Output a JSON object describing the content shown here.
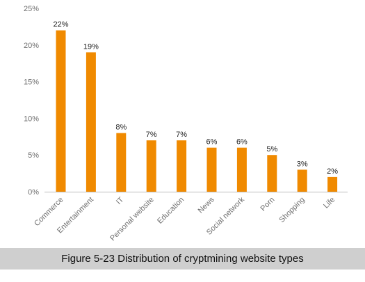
{
  "caption": "Figure 5-23 Distribution of cryptmining website types",
  "colors": {
    "bar": "#f08a00",
    "axis": "#bbbbbb",
    "caption_bg": "#cfcfcf"
  },
  "chart_data": {
    "type": "bar",
    "title": "",
    "xlabel": "",
    "ylabel": "",
    "categories": [
      "Commerce",
      "Entertainment",
      "IT",
      "Personal website",
      "Education",
      "News",
      "Social network",
      "Porn",
      "Shopping",
      "Life"
    ],
    "values": [
      22,
      19,
      8,
      7,
      7,
      6,
      6,
      5,
      3,
      2
    ],
    "data_labels": [
      "22%",
      "19%",
      "8%",
      "7%",
      "7%",
      "6%",
      "6%",
      "5%",
      "3%",
      "2%"
    ],
    "ylim": [
      0,
      25
    ],
    "y_ticks": [
      0,
      5,
      10,
      15,
      20,
      25
    ],
    "y_tick_labels": [
      "0%",
      "5%",
      "10%",
      "15%",
      "20%",
      "25%"
    ],
    "grid": false,
    "legend": "none"
  }
}
